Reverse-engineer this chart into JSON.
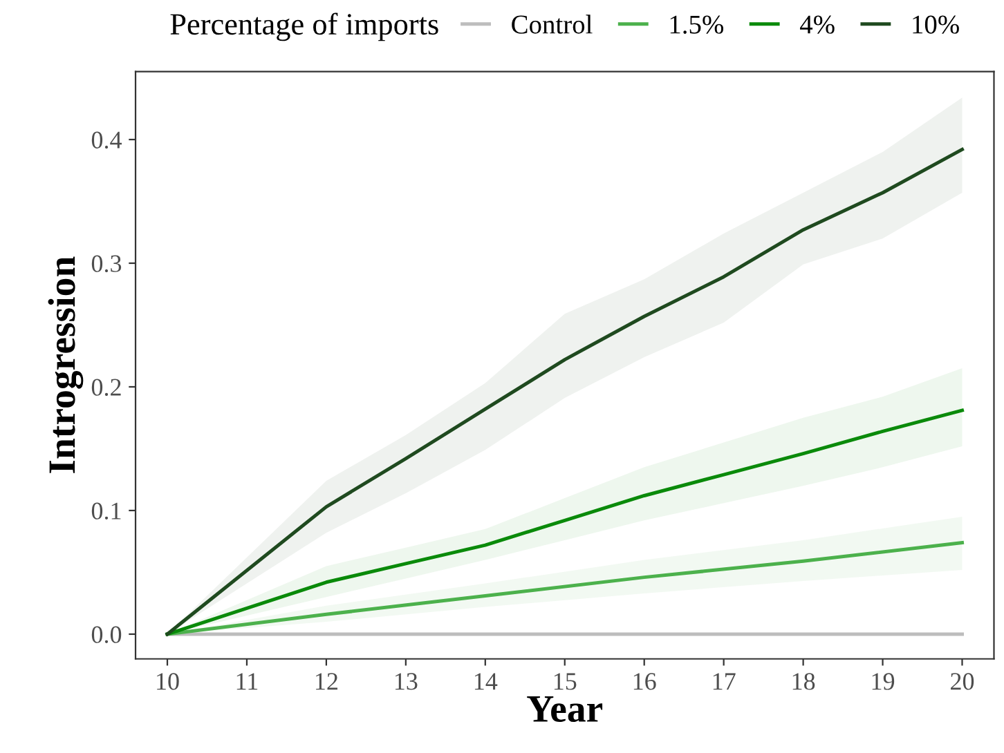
{
  "chart_data": {
    "type": "line",
    "xlabel": "Year",
    "ylabel": "Introgression",
    "legend_title": "Percentage of imports",
    "legend": "top",
    "grid": false,
    "xlim": [
      9.6,
      20.4
    ],
    "xticks": [
      10,
      11,
      12,
      13,
      14,
      15,
      16,
      17,
      18,
      19,
      20
    ],
    "ylim": [
      -0.02,
      0.455
    ],
    "yticks": [
      {
        "value": 0,
        "label": "0.0"
      },
      0.1,
      0.2,
      0.3,
      0.4
    ],
    "series": [
      {
        "name": "Control",
        "color": "#bdbdbd",
        "x": [
          10,
          20
        ],
        "values": [
          0,
          0
        ]
      },
      {
        "name": "1.5%",
        "color": "#4cb14c",
        "x": [
          10,
          12,
          14,
          16,
          18,
          20
        ],
        "values": [
          0,
          0.016,
          0.031,
          0.046,
          0.059,
          0.074
        ],
        "lower": [
          0,
          0.01,
          0.022,
          0.033,
          0.043,
          0.052
        ],
        "upper": [
          0,
          0.023,
          0.041,
          0.06,
          0.076,
          0.095
        ]
      },
      {
        "name": "4%",
        "color": "#0a8a0a",
        "x": [
          10,
          12,
          13,
          14,
          15,
          16,
          17,
          18,
          19,
          20
        ],
        "values": [
          0,
          0.042,
          0.057,
          0.072,
          0.092,
          0.112,
          0.129,
          0.146,
          0.164,
          0.181
        ],
        "lower": [
          0,
          0.03,
          0.045,
          0.06,
          0.076,
          0.092,
          0.106,
          0.12,
          0.135,
          0.152
        ],
        "upper": [
          0,
          0.055,
          0.07,
          0.085,
          0.11,
          0.135,
          0.155,
          0.175,
          0.192,
          0.215
        ]
      },
      {
        "name": "10%",
        "color": "#1f4a1f",
        "x": [
          10,
          12,
          13,
          14,
          15,
          16,
          17,
          18,
          19,
          20
        ],
        "values": [
          0,
          0.103,
          0.142,
          0.182,
          0.222,
          0.257,
          0.289,
          0.327,
          0.357,
          0.392
        ],
        "lower": [
          0,
          0.082,
          0.114,
          0.149,
          0.191,
          0.224,
          0.252,
          0.299,
          0.32,
          0.357
        ],
        "upper": [
          0,
          0.124,
          0.161,
          0.203,
          0.259,
          0.287,
          0.324,
          0.357,
          0.39,
          0.434
        ]
      }
    ]
  }
}
